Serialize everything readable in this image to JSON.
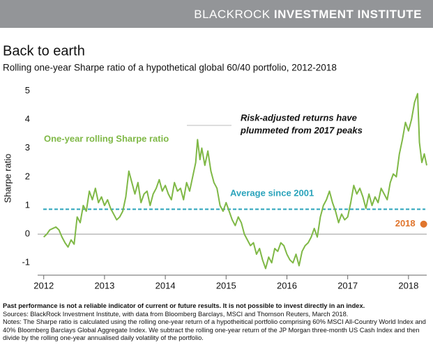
{
  "header": {
    "brand": "BLACKROCK",
    "unit": "INVESTMENT INSTITUTE"
  },
  "chart_data": {
    "type": "line",
    "title": "Back to earth",
    "subtitle": "Rolling one-year Sharpe ratio of a hypothetical global 60/40 portfolio, 2012-2018",
    "y_label": "Sharpe ratio",
    "xlim": [
      2011.9,
      2018.3
    ],
    "xticks": [
      2012,
      2013,
      2014,
      2015,
      2016,
      2017,
      2018
    ],
    "ylim": [
      -1.43,
      5.3
    ],
    "yticks": [
      -1,
      0,
      1,
      2,
      3,
      4,
      5
    ],
    "x": [
      2012.0,
      2012.05,
      2012.1,
      2012.15,
      2012.2,
      2012.25,
      2012.3,
      2012.35,
      2012.4,
      2012.45,
      2012.5,
      2012.55,
      2012.6,
      2012.65,
      2012.7,
      2012.75,
      2012.8,
      2012.85,
      2012.9,
      2012.95,
      2013.0,
      2013.05,
      2013.1,
      2013.15,
      2013.2,
      2013.25,
      2013.3,
      2013.35,
      2013.4,
      2013.45,
      2013.5,
      2013.55,
      2013.6,
      2013.65,
      2013.7,
      2013.75,
      2013.8,
      2013.85,
      2013.9,
      2013.95,
      2014.0,
      2014.05,
      2014.1,
      2014.15,
      2014.2,
      2014.25,
      2014.3,
      2014.35,
      2014.4,
      2014.45,
      2014.5,
      2014.53,
      2014.57,
      2014.6,
      2014.65,
      2014.7,
      2014.75,
      2014.8,
      2014.85,
      2014.9,
      2014.95,
      2015.0,
      2015.05,
      2015.1,
      2015.15,
      2015.2,
      2015.25,
      2015.3,
      2015.35,
      2015.4,
      2015.45,
      2015.5,
      2015.55,
      2015.6,
      2015.65,
      2015.7,
      2015.75,
      2015.8,
      2015.85,
      2015.9,
      2015.95,
      2016.0,
      2016.05,
      2016.1,
      2016.15,
      2016.2,
      2016.25,
      2016.3,
      2016.35,
      2016.4,
      2016.45,
      2016.5,
      2016.55,
      2016.6,
      2016.65,
      2016.7,
      2016.75,
      2016.8,
      2016.85,
      2016.9,
      2016.95,
      2017.0,
      2017.05,
      2017.1,
      2017.15,
      2017.2,
      2017.25,
      2017.3,
      2017.35,
      2017.4,
      2017.45,
      2017.5,
      2017.55,
      2017.6,
      2017.65,
      2017.7,
      2017.75,
      2017.8,
      2017.85,
      2017.9,
      2017.95,
      2018.0,
      2018.05,
      2018.1,
      2018.15,
      2018.18,
      2018.22,
      2018.26,
      2018.3
    ],
    "series": [
      {
        "name": "One-year rolling Sharpe ratio",
        "color": "#7fb846",
        "values": [
          -0.1,
          0.0,
          0.15,
          0.2,
          0.25,
          0.15,
          -0.1,
          -0.3,
          -0.45,
          -0.2,
          -0.35,
          0.6,
          0.4,
          1.0,
          0.8,
          1.5,
          1.2,
          1.6,
          1.1,
          1.3,
          1.0,
          1.2,
          0.9,
          0.7,
          0.5,
          0.6,
          0.8,
          1.3,
          2.2,
          1.8,
          1.4,
          1.8,
          1.1,
          1.4,
          1.5,
          1.0,
          1.4,
          1.6,
          1.9,
          1.5,
          1.7,
          1.4,
          1.2,
          1.8,
          1.5,
          1.6,
          1.2,
          1.8,
          1.5,
          2.0,
          2.5,
          3.3,
          2.6,
          3.0,
          2.4,
          2.9,
          2.2,
          1.8,
          1.6,
          1.0,
          0.8,
          1.1,
          0.8,
          0.5,
          0.3,
          0.6,
          0.4,
          0.0,
          -0.2,
          -0.4,
          -0.3,
          -0.7,
          -0.5,
          -0.9,
          -1.2,
          -0.8,
          -1.0,
          -0.5,
          -0.6,
          -0.3,
          -0.4,
          -0.7,
          -0.9,
          -1.0,
          -0.7,
          -1.1,
          -0.6,
          -0.4,
          -0.3,
          -0.1,
          0.2,
          -0.1,
          0.6,
          1.0,
          1.2,
          1.5,
          1.1,
          0.8,
          0.4,
          0.7,
          0.5,
          0.6,
          1.1,
          1.7,
          1.4,
          1.6,
          1.3,
          0.9,
          1.4,
          1.0,
          1.3,
          1.1,
          1.6,
          1.4,
          1.2,
          1.8,
          2.1,
          2.0,
          2.8,
          3.3,
          3.9,
          3.6,
          4.0,
          4.6,
          4.9,
          3.2,
          2.5,
          2.8,
          2.4
        ]
      }
    ],
    "average": {
      "label": "Average since 2001",
      "value": 0.87,
      "color": "#2aa3bb"
    },
    "marker": {
      "label": "2018",
      "x": 2018.25,
      "value": 0.35,
      "color": "#e0752d"
    },
    "annotation": [
      "Risk-adjusted returns have",
      "plummeted from 2017 peaks"
    ]
  },
  "footer": {
    "disclaimer": "Past performance is not a reliable indicator of current or future results. It is not possible to invest directly in an index.",
    "sources": "Sources: BlackRock Investment Institute, with data from Bloomberg Barclays, MSCI and Thomson Reuters, March 2018.",
    "notes": "Notes: The Sharpe ratio is calculated using the rolling one-year return of a hypotheitical portfolio comprising 60% MSCI All-Country World Index and 40% Bloomberg Barclays Global Aggregate Index. We subtract the rolling one-year return of the JP Morgan three-month US Cash Index and then divide by the rolling one-year annualised daily volatility of the portfolio."
  }
}
